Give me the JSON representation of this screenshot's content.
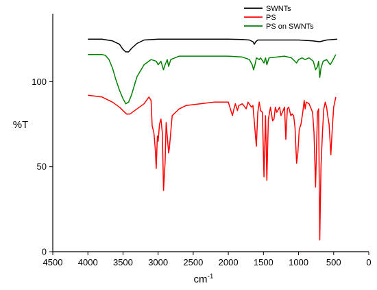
{
  "chart_data": {
    "type": "line",
    "xlabel_base": "cm",
    "xlabel_sup": "-1",
    "ylabel": "%T",
    "xlim": [
      4500,
      0
    ],
    "ylim": [
      0,
      140
    ],
    "xticks": [
      4500,
      4000,
      3500,
      3000,
      2500,
      2000,
      1500,
      1000,
      500,
      0
    ],
    "yticks": [
      0,
      50,
      100
    ],
    "grid": false,
    "legend_position": "top-right",
    "series": [
      {
        "name": "SWNTs",
        "color": "#000000",
        "points": [
          [
            4000,
            125
          ],
          [
            3800,
            125
          ],
          [
            3650,
            124
          ],
          [
            3550,
            122
          ],
          [
            3500,
            119
          ],
          [
            3460,
            117.5
          ],
          [
            3420,
            117.5
          ],
          [
            3380,
            119.5
          ],
          [
            3300,
            122.5
          ],
          [
            3200,
            124.5
          ],
          [
            3000,
            125
          ],
          [
            2500,
            125
          ],
          [
            2000,
            125
          ],
          [
            1800,
            124.8
          ],
          [
            1700,
            124.5
          ],
          [
            1650,
            123.5
          ],
          [
            1630,
            122
          ],
          [
            1610,
            123.5
          ],
          [
            1580,
            124.5
          ],
          [
            1500,
            124.5
          ],
          [
            1200,
            124.5
          ],
          [
            1000,
            124.5
          ],
          [
            800,
            124
          ],
          [
            700,
            123.5
          ],
          [
            600,
            124.5
          ],
          [
            450,
            125
          ]
        ]
      },
      {
        "name": "PS",
        "color": "#ff0000",
        "points": [
          [
            4000,
            92
          ],
          [
            3800,
            91
          ],
          [
            3650,
            88
          ],
          [
            3550,
            85
          ],
          [
            3500,
            83
          ],
          [
            3450,
            81
          ],
          [
            3400,
            81
          ],
          [
            3300,
            84
          ],
          [
            3200,
            87
          ],
          [
            3130,
            91
          ],
          [
            3100,
            89
          ],
          [
            3085,
            74
          ],
          [
            3060,
            70
          ],
          [
            3040,
            60
          ],
          [
            3027,
            49
          ],
          [
            3010,
            68
          ],
          [
            3000,
            65
          ],
          [
            2980,
            75
          ],
          [
            2960,
            78
          ],
          [
            2940,
            70
          ],
          [
            2923,
            36
          ],
          [
            2900,
            53
          ],
          [
            2885,
            76
          ],
          [
            2870,
            68
          ],
          [
            2850,
            58
          ],
          [
            2840,
            61
          ],
          [
            2800,
            80
          ],
          [
            2700,
            84
          ],
          [
            2600,
            86
          ],
          [
            2400,
            87
          ],
          [
            2200,
            88
          ],
          [
            2000,
            88
          ],
          [
            1942,
            80
          ],
          [
            1920,
            84
          ],
          [
            1900,
            87
          ],
          [
            1870,
            83
          ],
          [
            1850,
            86
          ],
          [
            1800,
            87
          ],
          [
            1745,
            84
          ],
          [
            1720,
            88
          ],
          [
            1670,
            85
          ],
          [
            1650,
            86
          ],
          [
            1601,
            62
          ],
          [
            1580,
            82
          ],
          [
            1560,
            88
          ],
          [
            1540,
            83
          ],
          [
            1515,
            82
          ],
          [
            1493,
            44
          ],
          [
            1470,
            80
          ],
          [
            1452,
            42
          ],
          [
            1430,
            78
          ],
          [
            1400,
            85
          ],
          [
            1370,
            77
          ],
          [
            1350,
            78
          ],
          [
            1330,
            85
          ],
          [
            1310,
            82
          ],
          [
            1270,
            85
          ],
          [
            1250,
            80
          ],
          [
            1230,
            82
          ],
          [
            1200,
            85
          ],
          [
            1181,
            66
          ],
          [
            1160,
            84
          ],
          [
            1140,
            85
          ],
          [
            1110,
            80
          ],
          [
            1090,
            81
          ],
          [
            1070,
            80
          ],
          [
            1050,
            73
          ],
          [
            1028,
            52
          ],
          [
            1010,
            58
          ],
          [
            990,
            72
          ],
          [
            965,
            75
          ],
          [
            940,
            82
          ],
          [
            920,
            89
          ],
          [
            906,
            84
          ],
          [
            890,
            88
          ],
          [
            850,
            87
          ],
          [
            820,
            84
          ],
          [
            800,
            82
          ],
          [
            780,
            70
          ],
          [
            757,
            38
          ],
          [
            745,
            60
          ],
          [
            730,
            82
          ],
          [
            715,
            84
          ],
          [
            698,
            7
          ],
          [
            680,
            50
          ],
          [
            660,
            70
          ],
          [
            640,
            84
          ],
          [
            620,
            88
          ],
          [
            600,
            85
          ],
          [
            585,
            80
          ],
          [
            565,
            75
          ],
          [
            540,
            57
          ],
          [
            520,
            72
          ],
          [
            500,
            85
          ],
          [
            470,
            91
          ]
        ]
      },
      {
        "name": "PS on SWNTs",
        "color": "#008000",
        "points": [
          [
            4000,
            116
          ],
          [
            3800,
            116
          ],
          [
            3750,
            115.5
          ],
          [
            3700,
            113
          ],
          [
            3650,
            108
          ],
          [
            3600,
            101
          ],
          [
            3550,
            95
          ],
          [
            3500,
            90
          ],
          [
            3460,
            87
          ],
          [
            3420,
            88
          ],
          [
            3380,
            92
          ],
          [
            3300,
            103
          ],
          [
            3200,
            110
          ],
          [
            3100,
            113
          ],
          [
            3026,
            112
          ],
          [
            3000,
            110
          ],
          [
            2960,
            112
          ],
          [
            2924,
            107
          ],
          [
            2900,
            110
          ],
          [
            2870,
            113
          ],
          [
            2850,
            109
          ],
          [
            2820,
            113
          ],
          [
            2700,
            115
          ],
          [
            2500,
            115
          ],
          [
            2000,
            115
          ],
          [
            1800,
            114.5
          ],
          [
            1700,
            113
          ],
          [
            1660,
            110
          ],
          [
            1640,
            107
          ],
          [
            1620,
            110
          ],
          [
            1600,
            114
          ],
          [
            1560,
            113
          ],
          [
            1540,
            114
          ],
          [
            1493,
            111
          ],
          [
            1470,
            114
          ],
          [
            1452,
            110
          ],
          [
            1420,
            114
          ],
          [
            1200,
            115
          ],
          [
            1100,
            114
          ],
          [
            1028,
            111
          ],
          [
            1000,
            113
          ],
          [
            950,
            114
          ],
          [
            906,
            113
          ],
          [
            850,
            114
          ],
          [
            790,
            112
          ],
          [
            757,
            107
          ],
          [
            730,
            109
          ],
          [
            715,
            112
          ],
          [
            698,
            102.5
          ],
          [
            680,
            108
          ],
          [
            650,
            112
          ],
          [
            600,
            113
          ],
          [
            550,
            110
          ],
          [
            520,
            112
          ],
          [
            470,
            116
          ]
        ]
      }
    ]
  }
}
